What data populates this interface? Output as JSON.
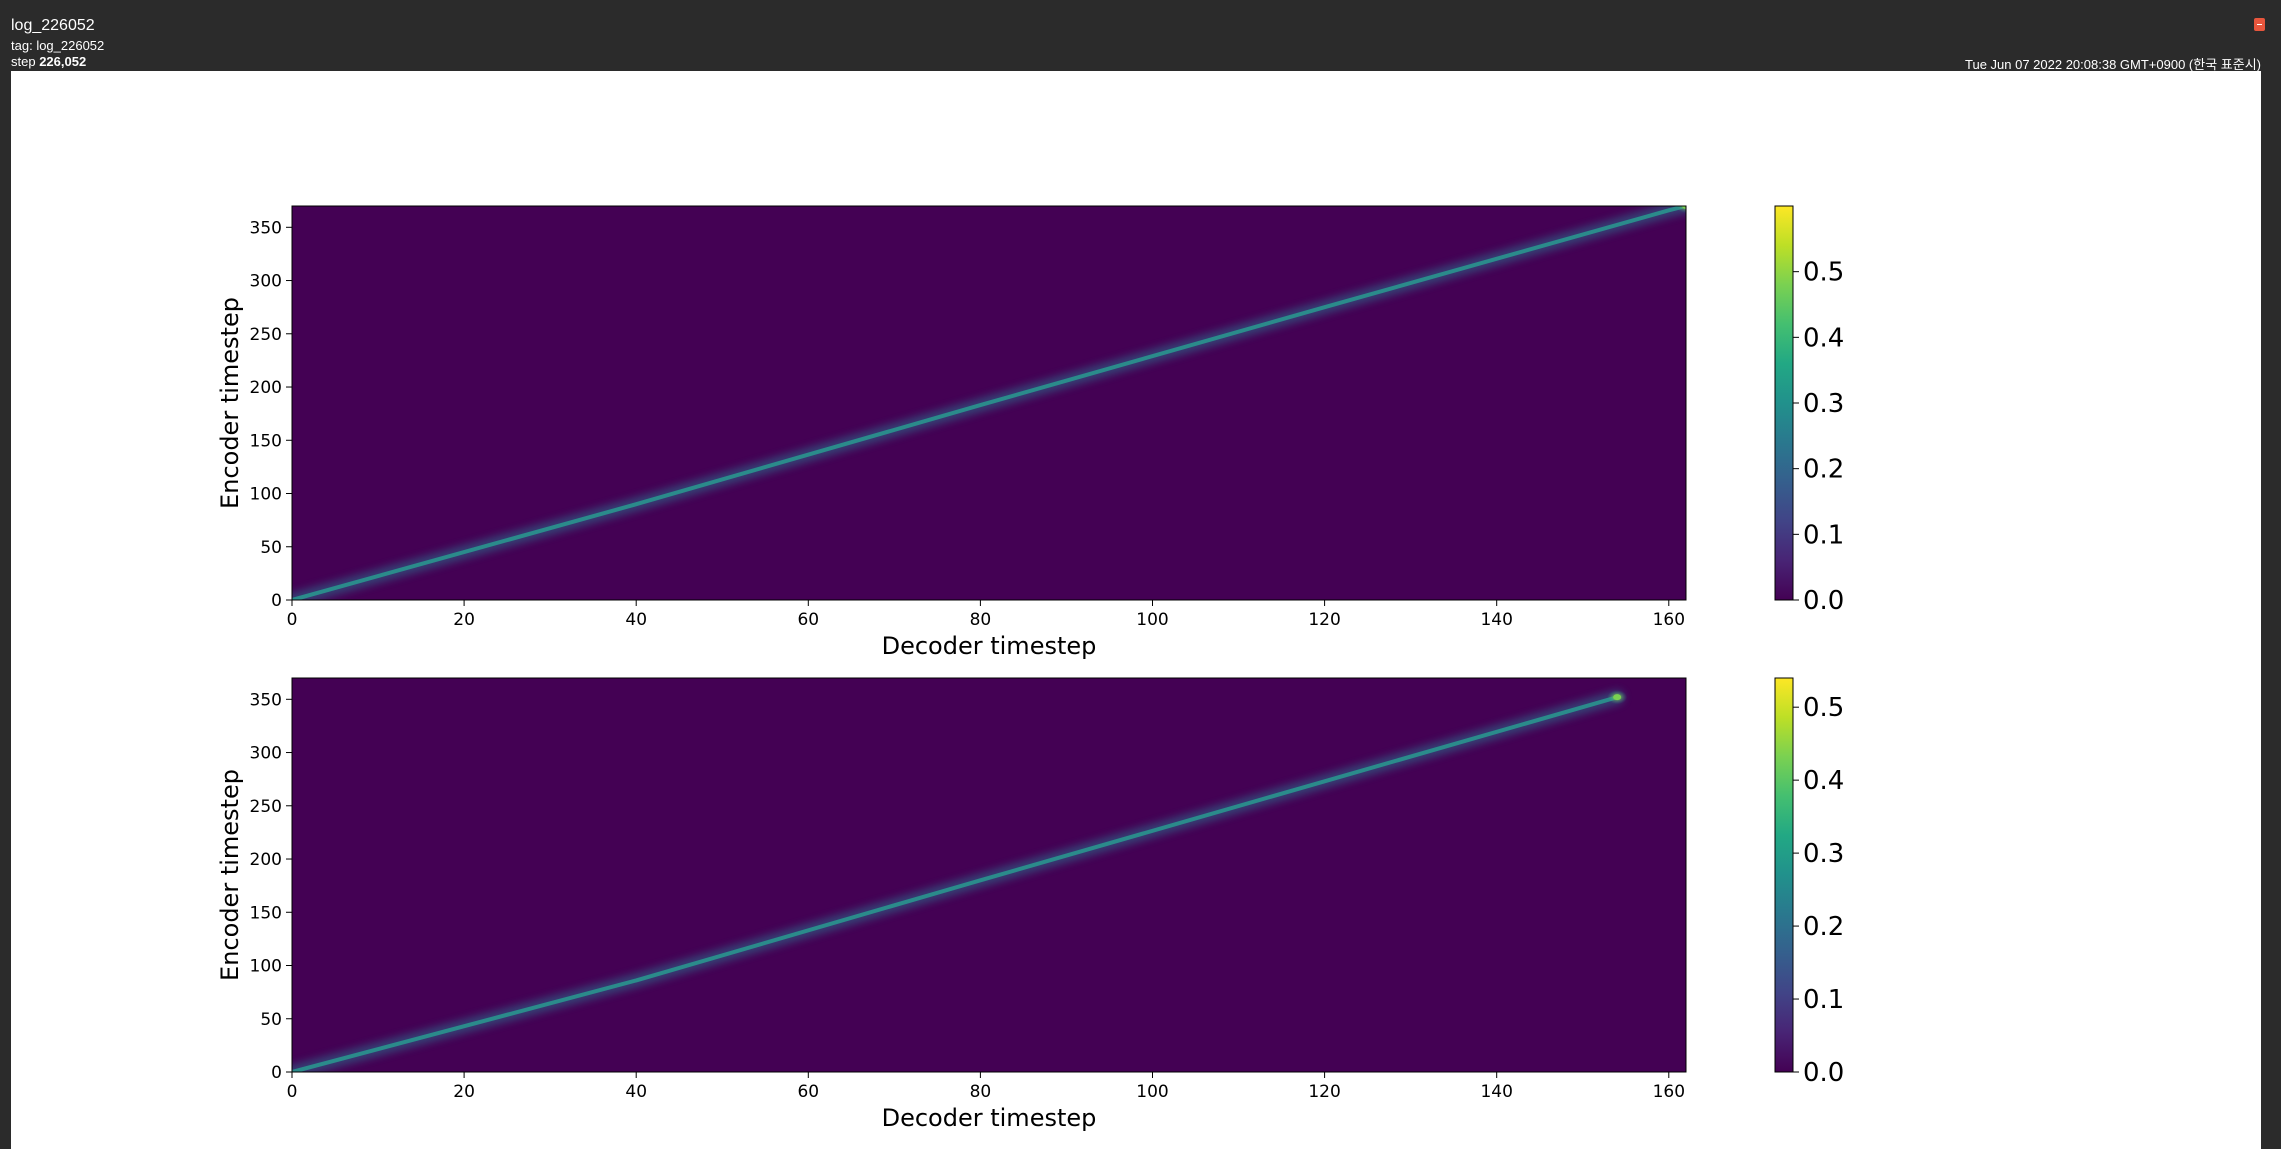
{
  "header": {
    "run_name": "log_226052",
    "tag_label": "tag:",
    "tag_value": "log_226052",
    "step_label": "step",
    "step_value": "226,052",
    "timestamp": "Tue Jun 07 2022 20:08:38 GMT+0900 (한국 표준시)"
  },
  "colors": {
    "background": "#440154",
    "alignment_line": "#2a8f8c",
    "alignment_end_bright": "#7ad151",
    "page_header": "#2b2b2b",
    "close_button": "#e8563d"
  },
  "icons": {
    "close": "close-icon"
  },
  "chart_data": [
    {
      "type": "heatmap",
      "colormap": "viridis",
      "xlabel": "Decoder timestep",
      "ylabel": "Encoder timestep",
      "xlim": [
        0,
        162
      ],
      "ylim": [
        0,
        370
      ],
      "xticks": [
        0,
        20,
        40,
        60,
        80,
        100,
        120,
        140,
        160
      ],
      "yticks": [
        0,
        50,
        100,
        150,
        200,
        250,
        300,
        350
      ],
      "colorbar": {
        "min": 0.0,
        "max": 0.6,
        "ticks": [
          "0.0",
          "0.1",
          "0.2",
          "0.3",
          "0.4",
          "0.5"
        ]
      },
      "alignment_path": [
        [
          0,
          0
        ],
        [
          40,
          90
        ],
        [
          80,
          183
        ],
        [
          120,
          275
        ],
        [
          160,
          366
        ],
        [
          162,
          370
        ]
      ],
      "alignment_peak_weight": 0.2,
      "end_peak_weight": 0.45
    },
    {
      "type": "heatmap",
      "colormap": "viridis",
      "xlabel": "Decoder timestep",
      "ylabel": "Encoder timestep",
      "xlim": [
        0,
        162
      ],
      "ylim": [
        0,
        370
      ],
      "xticks": [
        0,
        20,
        40,
        60,
        80,
        100,
        120,
        140,
        160
      ],
      "yticks": [
        0,
        50,
        100,
        150,
        200,
        250,
        300,
        350
      ],
      "colorbar": {
        "min": 0.0,
        "max": 0.54,
        "ticks": [
          "0.0",
          "0.1",
          "0.2",
          "0.3",
          "0.4",
          "0.5"
        ]
      },
      "alignment_path": [
        [
          0,
          0
        ],
        [
          40,
          86
        ],
        [
          80,
          180
        ],
        [
          120,
          273
        ],
        [
          154,
          352
        ]
      ],
      "alignment_peak_weight": 0.2,
      "end_peak_weight": 0.45
    }
  ]
}
